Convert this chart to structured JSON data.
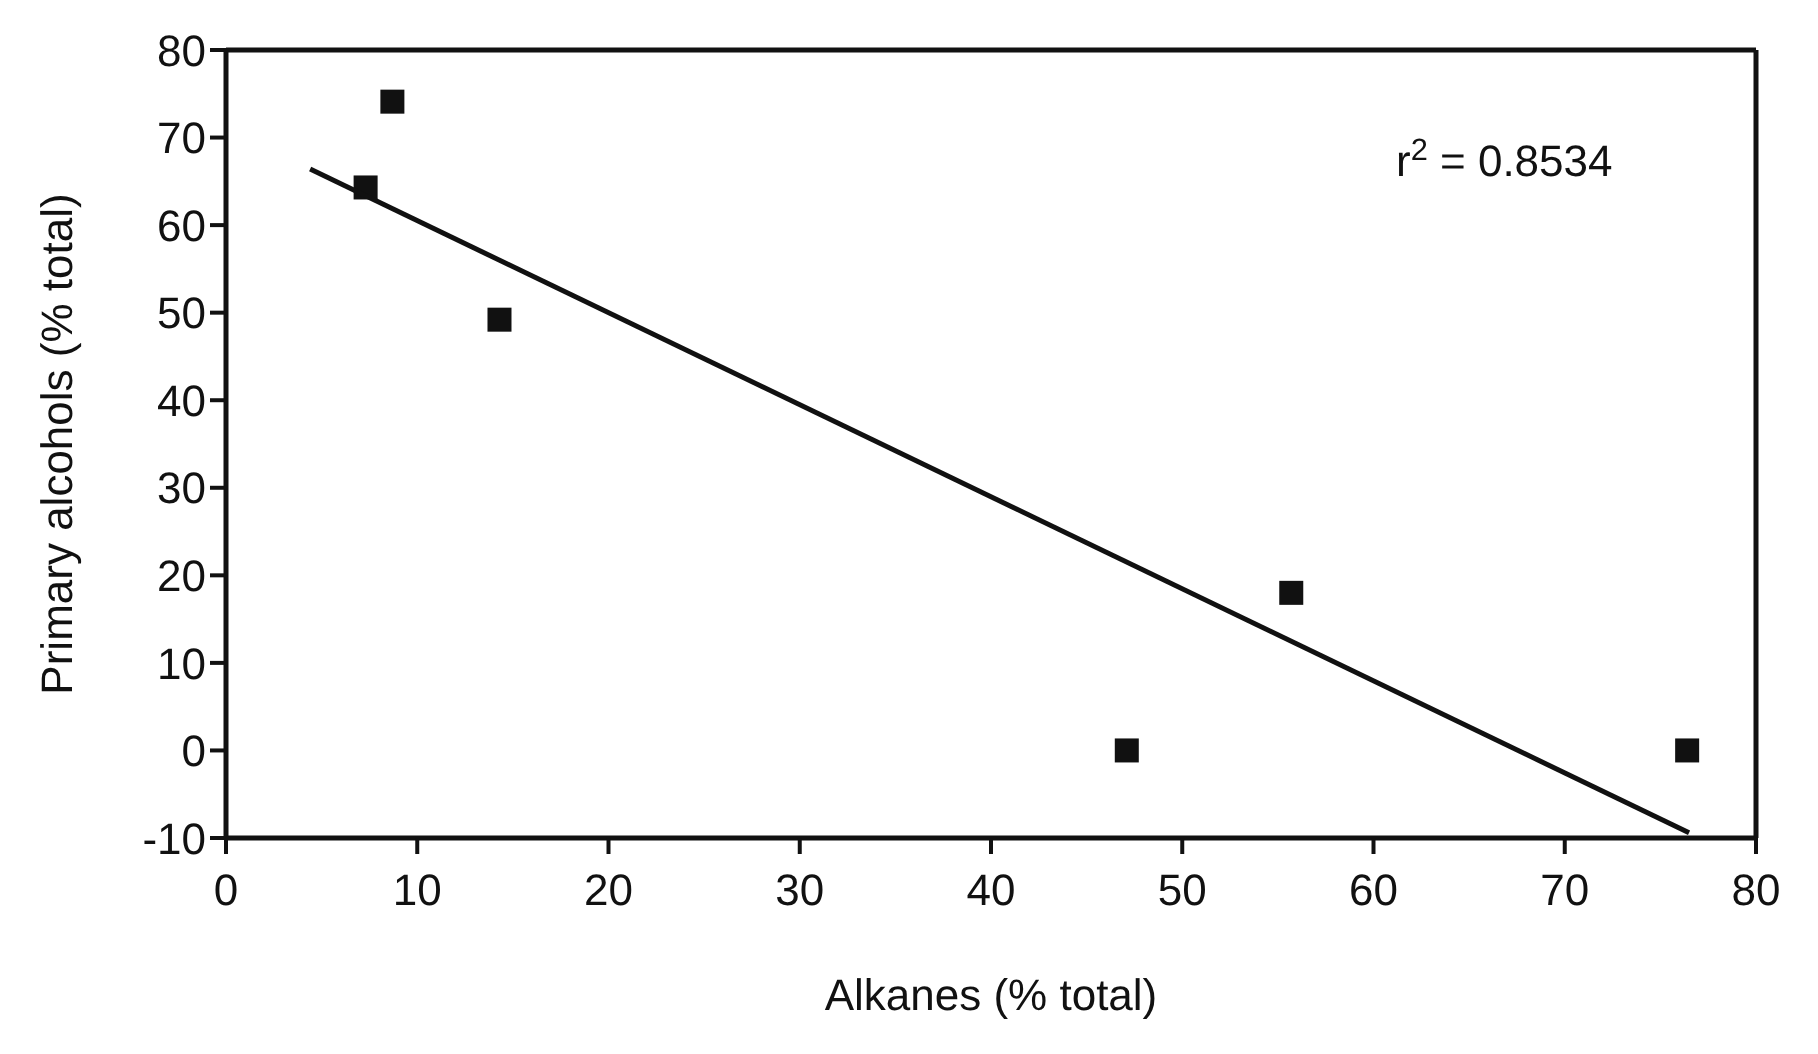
{
  "chart_data": {
    "type": "scatter",
    "xlabel": "Alkanes (% total)",
    "ylabel": "Primary alcohols (% total)",
    "xlim": [
      0,
      80
    ],
    "xticks": [
      0,
      10,
      20,
      30,
      40,
      50,
      60,
      70,
      80
    ],
    "ylim": [
      -10,
      80
    ],
    "yticks": [
      -10,
      0,
      10,
      20,
      30,
      40,
      50,
      60,
      70,
      80
    ],
    "marker": "square",
    "annotations": [
      "r$^{2}$ = 0.8534"
    ],
    "series": [
      {
        "color": "#111111",
        "x": [
          7.3,
          8.7,
          14.3,
          47.1,
          55.7,
          76.4
        ],
        "values": [
          64.3,
          74.1,
          49.2,
          0,
          18.0,
          0
        ]
      },
      {
        "type": "line",
        "color": "#111111",
        "marker": "none",
        "line_style": "solid",
        "x": [
          4.4,
          76.5
        ],
        "values": [
          66.4,
          -9.4
        ]
      }
    ]
  }
}
